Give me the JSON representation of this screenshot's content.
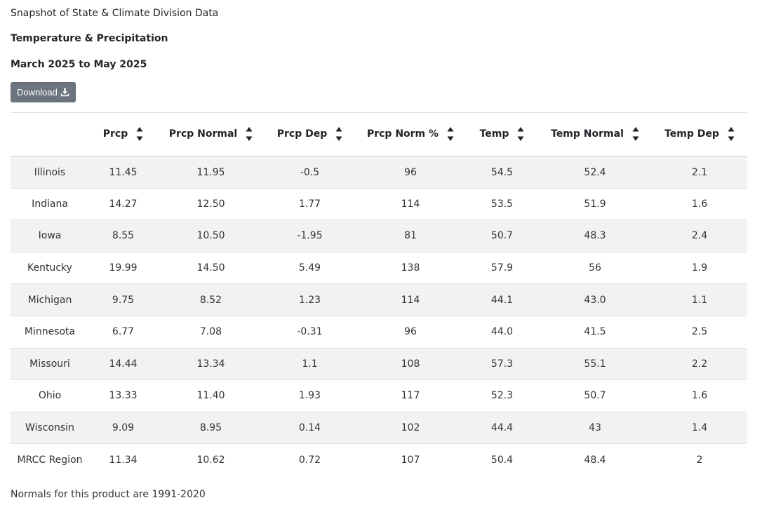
{
  "header": {
    "line1": "Snapshot of State & Climate Division Data",
    "line2": "Temperature & Precipitation",
    "line3": "March 2025 to May 2025"
  },
  "download": {
    "label": "Download",
    "icon": "download-icon"
  },
  "table": {
    "columns": [
      "",
      "Prcp",
      "Prcp Normal",
      "Prcp Dep",
      "Prcp Norm %",
      "Temp",
      "Temp Normal",
      "Temp Dep"
    ],
    "rows": [
      [
        "Illinois",
        "11.45",
        "11.95",
        "-0.5",
        "96",
        "54.5",
        "52.4",
        "2.1"
      ],
      [
        "Indiana",
        "14.27",
        "12.50",
        "1.77",
        "114",
        "53.5",
        "51.9",
        "1.6"
      ],
      [
        "Iowa",
        "8.55",
        "10.50",
        "-1.95",
        "81",
        "50.7",
        "48.3",
        "2.4"
      ],
      [
        "Kentucky",
        "19.99",
        "14.50",
        "5.49",
        "138",
        "57.9",
        "56",
        "1.9"
      ],
      [
        "Michigan",
        "9.75",
        "8.52",
        "1.23",
        "114",
        "44.1",
        "43.0",
        "1.1"
      ],
      [
        "Minnesota",
        "6.77",
        "7.08",
        "-0.31",
        "96",
        "44.0",
        "41.5",
        "2.5"
      ],
      [
        "Missouri",
        "14.44",
        "13.34",
        "1.1",
        "108",
        "57.3",
        "55.1",
        "2.2"
      ],
      [
        "Ohio",
        "13.33",
        "11.40",
        "1.93",
        "117",
        "52.3",
        "50.7",
        "1.6"
      ],
      [
        "Wisconsin",
        "9.09",
        "8.95",
        "0.14",
        "102",
        "44.4",
        "43",
        "1.4"
      ],
      [
        "MRCC Region",
        "11.34",
        "10.62",
        "0.72",
        "107",
        "50.4",
        "48.4",
        "2"
      ]
    ]
  },
  "footer": {
    "note": "Normals for this product are 1991-2020"
  }
}
